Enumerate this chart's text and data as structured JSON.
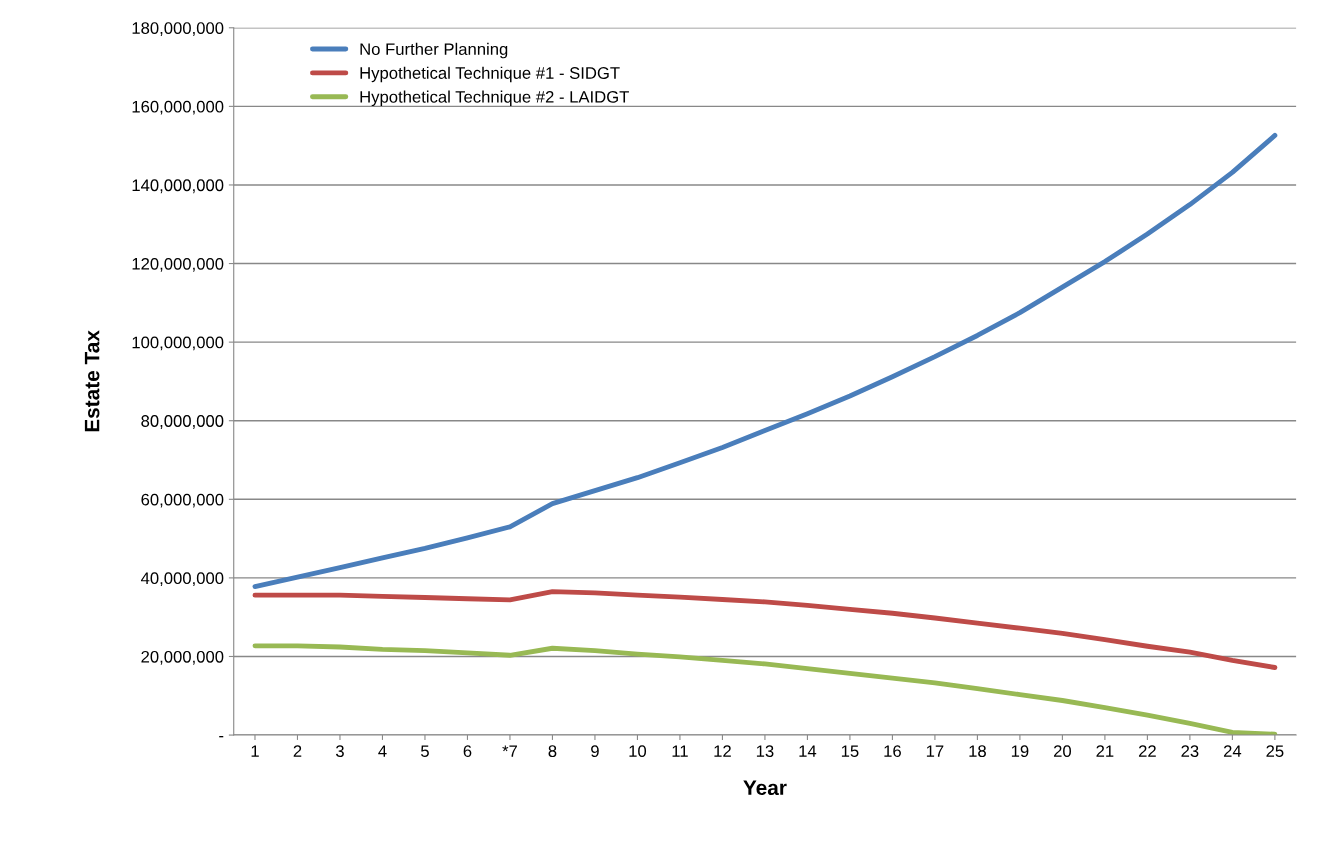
{
  "chart_data": {
    "type": "line",
    "xlabel": "Year",
    "ylabel": "Estate Tax",
    "categories": [
      "1",
      "2",
      "3",
      "4",
      "5",
      "6",
      "*7",
      "8",
      "9",
      "10",
      "11",
      "12",
      "13",
      "14",
      "15",
      "16",
      "17",
      "18",
      "19",
      "20",
      "21",
      "22",
      "23",
      "24",
      "25"
    ],
    "series": [
      {
        "name": "No Further Planning",
        "color": "#4a7ebb",
        "values": [
          37800000,
          40200000,
          42600000,
          45100000,
          47500000,
          50200000,
          53000000,
          58900000,
          62200000,
          65500000,
          69300000,
          73200000,
          77500000,
          81800000,
          86300000,
          91200000,
          96300000,
          101700000,
          107500000,
          114000000,
          120500000,
          127500000,
          135000000,
          143200000,
          152600000
        ]
      },
      {
        "name": "Hypothetical Technique #1 - SIDGT",
        "color": "#be4b48",
        "values": [
          35600000,
          35600000,
          35600000,
          35300000,
          35000000,
          34700000,
          34400000,
          36500000,
          36200000,
          35600000,
          35100000,
          34500000,
          33900000,
          33000000,
          32000000,
          31000000,
          29800000,
          28500000,
          27200000,
          25900000,
          24300000,
          22600000,
          21100000,
          19000000,
          17200000
        ]
      },
      {
        "name": "Hypothetical Technique #2 - LAIDGT",
        "color": "#98b954",
        "values": [
          22700000,
          22700000,
          22400000,
          21800000,
          21500000,
          20900000,
          20300000,
          22100000,
          21500000,
          20600000,
          19900000,
          19000000,
          18100000,
          16900000,
          15700000,
          14500000,
          13300000,
          11800000,
          10300000,
          8800000,
          7000000,
          5100000,
          3000000,
          700000,
          200000
        ]
      }
    ],
    "ylim": [
      0,
      180000000
    ],
    "yticks": [
      {
        "value": 0,
        "label": "-"
      },
      {
        "value": 20000000,
        "label": "20,000,000"
      },
      {
        "value": 40000000,
        "label": "40,000,000"
      },
      {
        "value": 60000000,
        "label": "60,000,000"
      },
      {
        "value": 80000000,
        "label": "80,000,000"
      },
      {
        "value": 100000000,
        "label": "100,000,000"
      },
      {
        "value": 120000000,
        "label": "120,000,000"
      },
      {
        "value": 140000000,
        "label": "140,000,000"
      },
      {
        "value": 160000000,
        "label": "160,000,000"
      },
      {
        "value": 180000000,
        "label": "180,000,000"
      }
    ],
    "grid": "y",
    "legend": "top left",
    "marker": "none",
    "line_style": "solid"
  }
}
